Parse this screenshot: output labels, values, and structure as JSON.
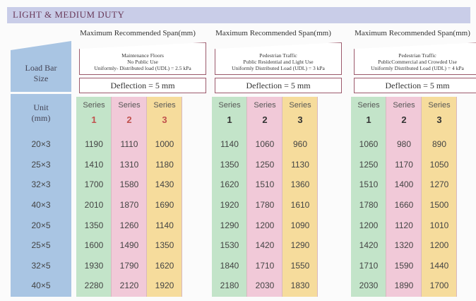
{
  "header": {
    "title": "LIGHT & MEDIUM DUTY"
  },
  "size_column": {
    "heading": "Load Bar Size",
    "unit_heading": "Unit (mm)",
    "sizes": [
      "20×3",
      "25×3",
      "32×3",
      "40×3",
      "20×5",
      "25×5",
      "32×5",
      "40×5"
    ]
  },
  "groups": [
    {
      "span_title": "Maximum Recommended Span(mm)",
      "description": [
        "Maintenance Floors",
        "No Public Use",
        "Uniformly- Distributed load (UDL) = 2.5 kPa"
      ],
      "deflection": "Deflection = 5 mm",
      "number_color": "#c0504d",
      "series": [
        {
          "label": "Series",
          "number": 1
        },
        {
          "label": "Series",
          "number": 2
        },
        {
          "label": "Series",
          "number": 3
        }
      ],
      "rows": [
        [
          1190,
          1110,
          1000
        ],
        [
          1410,
          1310,
          1180
        ],
        [
          1700,
          1580,
          1430
        ],
        [
          2010,
          1870,
          1690
        ],
        [
          1350,
          1260,
          1140
        ],
        [
          1600,
          1490,
          1350
        ],
        [
          1930,
          1790,
          1620
        ],
        [
          2280,
          2120,
          1920
        ]
      ]
    },
    {
      "span_title": "Maximum Recommended Span(mm)",
      "description": [
        "Pedestrian Traffic",
        "Public Residential and Light Use",
        "Uniformly Distributed Load (UDL) = 3 kPa"
      ],
      "deflection": "Deflection = 5 mm",
      "number_color": "#333333",
      "series": [
        {
          "label": "Series",
          "number": 1
        },
        {
          "label": "Series",
          "number": 2
        },
        {
          "label": "Series",
          "number": 3
        }
      ],
      "rows": [
        [
          1140,
          1060,
          960
        ],
        [
          1350,
          1250,
          1130
        ],
        [
          1620,
          1510,
          1360
        ],
        [
          1920,
          1780,
          1610
        ],
        [
          1290,
          1200,
          1090
        ],
        [
          1530,
          1420,
          1290
        ],
        [
          1840,
          1710,
          1550
        ],
        [
          2180,
          2030,
          1830
        ]
      ]
    },
    {
      "span_title": "Maximum Recommended Span(mm)",
      "description": [
        "Pedestrian Traffic",
        "PublicCommercial and Crowded Use",
        "Uniformly Distributed Load (UDL) = 4 kPa"
      ],
      "deflection": "Deflection = 5 mm",
      "number_color": "#333333",
      "series": [
        {
          "label": "Series",
          "number": 1
        },
        {
          "label": "Series",
          "number": 2
        },
        {
          "label": "Series",
          "number": 3
        }
      ],
      "rows": [
        [
          1060,
          980,
          890
        ],
        [
          1250,
          1170,
          1050
        ],
        [
          1510,
          1400,
          1270
        ],
        [
          1780,
          1660,
          1500
        ],
        [
          1200,
          1120,
          1010
        ],
        [
          1420,
          1320,
          1200
        ],
        [
          1710,
          1590,
          1440
        ],
        [
          2030,
          1890,
          1700
        ]
      ]
    }
  ]
}
